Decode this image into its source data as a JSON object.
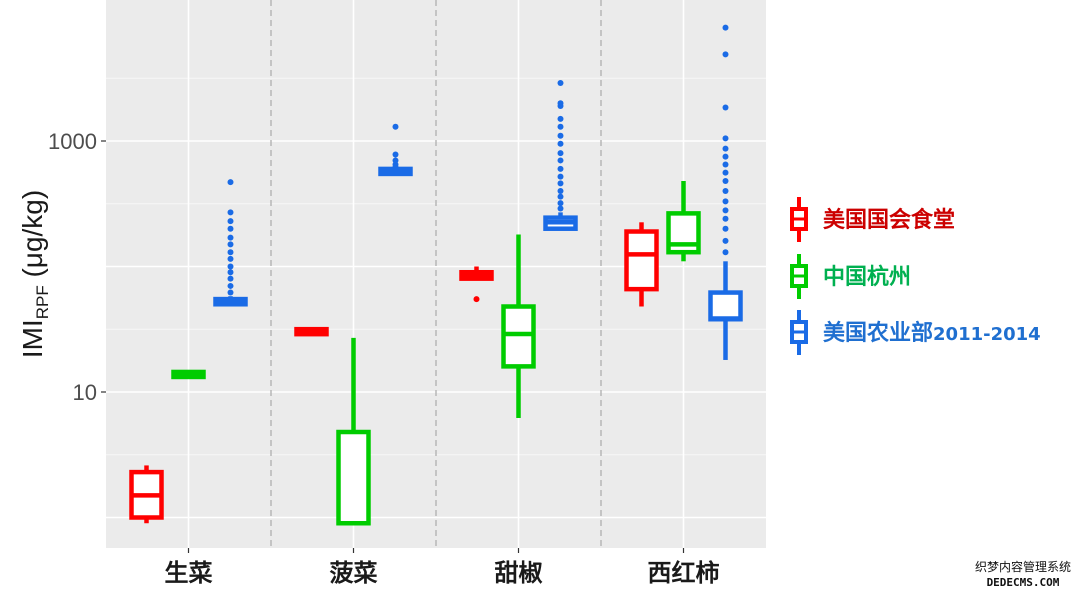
{
  "chart_data": {
    "type": "boxplot",
    "yscale": "log",
    "ylim": [
      0.7,
      10000
    ],
    "ylabel_main": "IMI",
    "ylabel_sub": "RPF",
    "ylabel_unit": " (μg/kg)",
    "yticks": [
      {
        "value": 10,
        "label": "10"
      },
      {
        "value": 1000,
        "label": "1000"
      }
    ],
    "ygrid_major": [
      1,
      10,
      100,
      1000
    ],
    "ygrid_minor": [
      3.16,
      31.6,
      316,
      3160
    ],
    "categories": [
      "生菜",
      "菠菜",
      "甜椒",
      "西红柿"
    ],
    "category_separators": true,
    "legend_placement": "right",
    "series": [
      {
        "name": "美国国会食堂",
        "color": "#ff0000",
        "label_color": "#cc0000",
        "boxes": [
          {
            "category": "生菜",
            "min": 0.9,
            "q1": 1.0,
            "median": 1.5,
            "q3": 2.3,
            "max": 2.6,
            "outliers": []
          },
          {
            "category": "菠菜",
            "min": 30,
            "q1": 30,
            "median": 30.3,
            "q3": 30.5,
            "max": 30.6,
            "outliers": []
          },
          {
            "category": "甜椒",
            "min": 80,
            "q1": 80,
            "median": 85,
            "q3": 90,
            "max": 100,
            "outliers": [
              55
            ]
          },
          {
            "category": "西红柿",
            "min": 48,
            "q1": 66,
            "median": 125,
            "q3": 190,
            "max": 225,
            "outliers": []
          }
        ]
      },
      {
        "name": "中国杭州",
        "color": "#00cc00",
        "label_color": "#00b050",
        "boxes": [
          {
            "category": "生菜",
            "min": 13.5,
            "q1": 13.6,
            "median": 13.8,
            "q3": 14.0,
            "max": 14.1,
            "outliers": []
          },
          {
            "category": "菠菜",
            "min": 0.9,
            "q1": 0.9,
            "median": 0.9,
            "q3": 4.8,
            "max": 27,
            "outliers": []
          },
          {
            "category": "甜椒",
            "min": 6.2,
            "q1": 16,
            "median": 29,
            "q3": 48,
            "max": 180,
            "outliers": []
          },
          {
            "category": "西红柿",
            "min": 110,
            "q1": 130,
            "median": 150,
            "q3": 265,
            "max": 480,
            "outliers": []
          }
        ]
      },
      {
        "name": "美国农业部",
        "name_suffix": "2011-2014",
        "color": "#1a6be6",
        "label_color": "#1f6fd0",
        "boxes": [
          {
            "category": "生菜",
            "min": 50,
            "q1": 50,
            "median": 52,
            "q3": 55,
            "max": 58,
            "outliers": [
              62,
              70,
              80,
              90,
              100,
              115,
              130,
              150,
              170,
              200,
              230,
              270,
              470
            ]
          },
          {
            "category": "菠菜",
            "min": 560,
            "q1": 560,
            "median": 570,
            "q3": 585,
            "max": 600,
            "outliers": [
              620,
              650,
              700,
              780,
              1300
            ]
          },
          {
            "category": "甜椒",
            "min": 200,
            "q1": 200,
            "median": 225,
            "q3": 245,
            "max": 270,
            "outliers": [
              290,
              320,
              360,
              400,
              460,
              520,
              600,
              700,
              800,
              950,
              1100,
              1300,
              1500,
              1900,
              2000,
              2900
            ]
          },
          {
            "category": "西红柿",
            "min": 18,
            "q1": 38,
            "median": 38.5,
            "q3": 62,
            "max": 110,
            "outliers": [
              130,
              160,
              200,
              240,
              280,
              330,
              400,
              480,
              560,
              650,
              750,
              870,
              1050,
              1850,
              4900,
              8000
            ]
          }
        ]
      }
    ]
  },
  "watermark": {
    "line1": "织梦内容管理系统",
    "line2": "DEDECMS.COM"
  }
}
